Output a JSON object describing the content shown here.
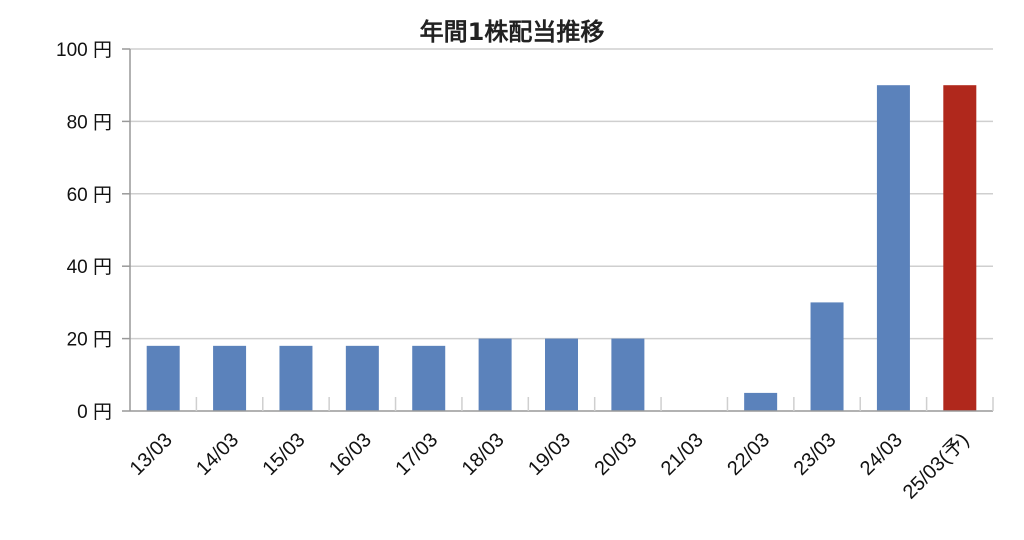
{
  "chart_data": {
    "type": "bar",
    "title": "年間1株配当推移",
    "categories": [
      "13/03",
      "14/03",
      "15/03",
      "16/03",
      "17/03",
      "18/03",
      "19/03",
      "20/03",
      "21/03",
      "22/03",
      "23/03",
      "24/03",
      "25/03(予)"
    ],
    "values": [
      18,
      18,
      18,
      18,
      18,
      20,
      20,
      20,
      0,
      5,
      30,
      90,
      90
    ],
    "y_ticks": [
      "0 円",
      "20 円",
      "40 円",
      "60 円",
      "80 円",
      "100 円"
    ],
    "ylim": [
      0,
      100
    ],
    "grid": true,
    "colors": {
      "actual": "#5b82bb",
      "forecast": "#b0281c",
      "grid": "#cfcfcf",
      "axis": "#999999"
    },
    "forecast_index": 12
  }
}
